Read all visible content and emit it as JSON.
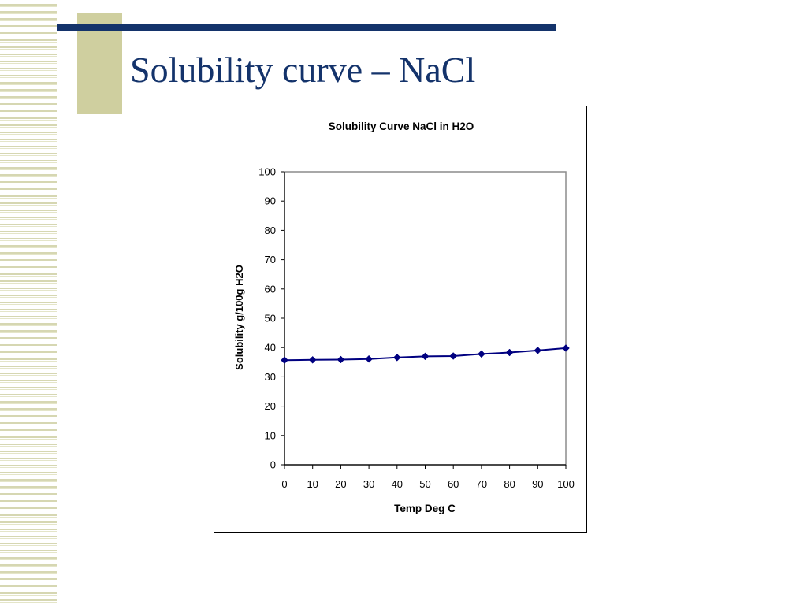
{
  "slide": {
    "title": "Solubility curve – NaCl"
  },
  "colors": {
    "title": "#14336b",
    "accent_rule": "#14336b",
    "accent_block": "#cfcf9f",
    "stripe": "#d6d7b2",
    "series": "#000080"
  },
  "chart_data": {
    "type": "line",
    "title": "Solubility Curve NaCl in H2O",
    "xlabel": "Temp Deg C",
    "ylabel": "Solubility g/100g H2O",
    "xlim": [
      0,
      100
    ],
    "ylim": [
      0,
      100
    ],
    "x_ticks": [
      0,
      10,
      20,
      30,
      40,
      50,
      60,
      70,
      80,
      90,
      100
    ],
    "y_ticks": [
      0,
      10,
      20,
      30,
      40,
      50,
      60,
      70,
      80,
      90,
      100
    ],
    "grid": false,
    "legend": "none",
    "marker": "diamond",
    "x": [
      0,
      10,
      20,
      30,
      40,
      50,
      60,
      70,
      80,
      90,
      100
    ],
    "y": [
      35.7,
      35.8,
      35.9,
      36.1,
      36.6,
      37.0,
      37.1,
      37.8,
      38.3,
      39.0,
      39.8
    ]
  }
}
